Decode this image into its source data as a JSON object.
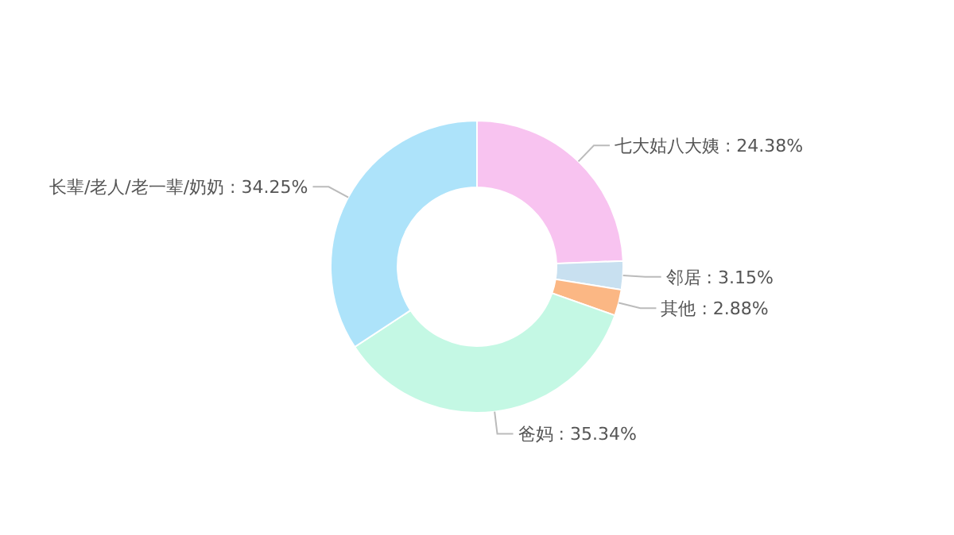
{
  "chart_data": {
    "type": "donut",
    "categories": [
      "七大姑八大姨",
      "邻居",
      "其他",
      "爸妈",
      "长辈/老人/老一辈/奶奶"
    ],
    "values": [
      24.38,
      3.15,
      2.88,
      35.34,
      34.25
    ],
    "value_labels": [
      "24.38%",
      "3.15%",
      "2.88%",
      "35.34%",
      "34.25%"
    ],
    "colors": [
      "#f8c3f0",
      "#c8e0f0",
      "#fbb784",
      "#c4f8e4",
      "#ade3fa"
    ]
  }
}
